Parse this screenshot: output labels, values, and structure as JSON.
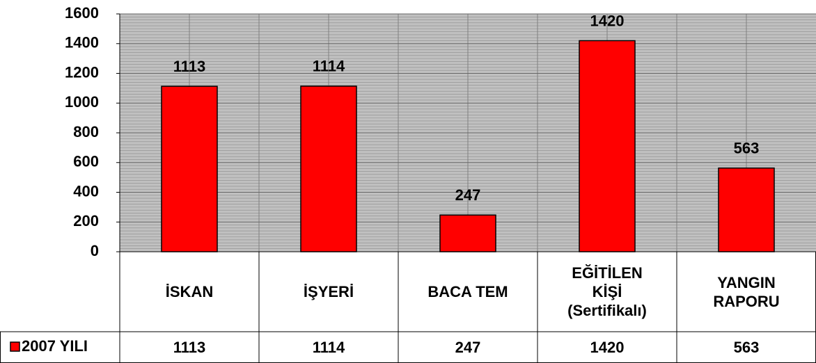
{
  "chart_data": {
    "type": "bar",
    "categories": [
      "İSKAN",
      "İŞYERİ",
      "BACA TEM",
      "EĞİTİLEN KİŞİ (Sertifikalı)",
      "YANGIN RAPORU"
    ],
    "series": [
      {
        "name": "2007 YILI",
        "color": "#ff0000",
        "values": [
          1113,
          1114,
          247,
          1420,
          563
        ]
      }
    ],
    "ylim": [
      0,
      1600
    ],
    "yticks": [
      0,
      200,
      400,
      600,
      800,
      1000,
      1200,
      1400,
      1600
    ],
    "grid": true
  }
}
